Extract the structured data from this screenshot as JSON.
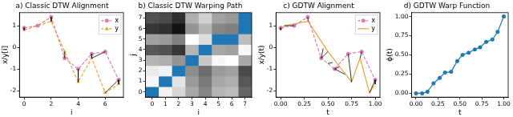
{
  "chart_data": [
    {
      "type": "line",
      "title": "a) Classic DTW Alignment",
      "x_label": "i",
      "y_label": "x/y[i]",
      "x": [
        0,
        1,
        2,
        3,
        4,
        5,
        6,
        7
      ],
      "series": [
        {
          "name": "x",
          "color": "#e07bb5",
          "marker": "circle",
          "line_style": "dashed",
          "values": [
            0.9,
            1.0,
            1.4,
            -0.5,
            -1.0,
            -0.3,
            -0.2,
            -1.5
          ]
        },
        {
          "name": "y",
          "color": "#f0a22e",
          "marker": "triangle",
          "line_style": "dashed",
          "values": [
            0.8,
            1.0,
            1.2,
            -0.2,
            -1.6,
            -0.5,
            -2.1,
            -1.7
          ]
        }
      ],
      "alignment": [
        [
          0,
          0
        ],
        [
          1,
          1
        ],
        [
          2,
          2
        ],
        [
          3,
          3
        ],
        [
          4,
          4
        ],
        [
          5,
          5
        ],
        [
          6,
          5
        ],
        [
          7,
          6
        ],
        [
          7,
          7
        ]
      ],
      "xlim": [
        -0.35,
        7.35
      ],
      "xticks": [
        0,
        2,
        4,
        6
      ],
      "ylim": [
        -2.3,
        1.6
      ],
      "yticks": [
        -2,
        -1,
        0,
        1
      ],
      "grid": false,
      "legend": "upper right"
    },
    {
      "type": "heatmap",
      "title": "b) Classic DTW Warping Path",
      "x_label": "i",
      "y_label": "j",
      "x": [
        0,
        1,
        2,
        3,
        4,
        5,
        6,
        7
      ],
      "y": [
        0,
        1,
        2,
        3,
        4,
        5,
        6,
        7
      ],
      "cells": [
        [
          0.1,
          0.2,
          0.6,
          1.3,
          1.8,
          1.1,
          1.0,
          2.3
        ],
        [
          0.1,
          0.0,
          0.4,
          1.5,
          2.0,
          1.3,
          1.2,
          2.5
        ],
        [
          0.3,
          0.2,
          0.2,
          1.7,
          2.2,
          1.5,
          1.4,
          2.7
        ],
        [
          1.1,
          1.2,
          1.6,
          0.3,
          0.8,
          0.1,
          0.0,
          1.3
        ],
        [
          2.5,
          2.6,
          3.0,
          1.1,
          0.6,
          1.3,
          1.4,
          0.1
        ],
        [
          1.4,
          1.5,
          1.9,
          0.0,
          0.5,
          0.2,
          0.3,
          1.0
        ],
        [
          3.0,
          3.1,
          3.5,
          1.6,
          1.1,
          1.8,
          1.9,
          0.6
        ],
        [
          2.6,
          2.7,
          3.1,
          1.2,
          0.7,
          1.4,
          1.5,
          0.2
        ]
      ],
      "path": {
        "color": "#1f77b4",
        "points": [
          [
            0,
            0
          ],
          [
            1,
            1
          ],
          [
            2,
            2
          ],
          [
            3,
            3
          ],
          [
            4,
            4
          ],
          [
            5,
            5
          ],
          [
            6,
            5
          ],
          [
            7,
            6
          ],
          [
            7,
            7
          ]
        ]
      },
      "xlim": [
        -0.5,
        7.5
      ],
      "xticks": [
        0,
        1,
        2,
        3,
        4,
        5,
        6,
        7
      ],
      "ylim": [
        -0.5,
        7.5
      ],
      "yticks": [
        0,
        1,
        2,
        3,
        4,
        5,
        6,
        7
      ],
      "grid": false
    },
    {
      "type": "line",
      "title": "c) GDTW Alignment",
      "x_label": "t",
      "y_label": "x/y(t)",
      "series": [
        {
          "name": "x",
          "color": "#e07bb5",
          "marker": "circle",
          "line_style": "dashed",
          "x": [
            0,
            0.143,
            0.286,
            0.429,
            0.571,
            0.714,
            0.857,
            1.0
          ],
          "values": [
            0.9,
            1.0,
            1.4,
            -0.5,
            -1.0,
            -0.3,
            -0.2,
            -1.5
          ]
        },
        {
          "name": "y",
          "color": "#f0a22e",
          "marker": "none",
          "line_style": "solid",
          "x": [
            0,
            0.04,
            0.29,
            0.5,
            0.75,
            0.84,
            0.94,
            1.0
          ],
          "values": [
            0.8,
            1.0,
            1.2,
            -0.2,
            -1.6,
            -0.5,
            -2.1,
            -1.7
          ]
        }
      ],
      "alignment_segments": [
        [
          0,
          0.9,
          0,
          0.8
        ],
        [
          0.143,
          1.0,
          0.04,
          1.0
        ],
        [
          0.286,
          1.4,
          0.29,
          1.2
        ],
        [
          0.429,
          -0.5,
          0.45,
          -0.05
        ],
        [
          0.429,
          -0.5,
          0.5,
          -0.2
        ],
        [
          0.5,
          -0.75,
          0.55,
          -0.7
        ],
        [
          0.571,
          -1.0,
          0.62,
          -0.9
        ],
        [
          0.571,
          -1.0,
          0.68,
          -1.25
        ],
        [
          0.714,
          -0.3,
          0.75,
          -1.6
        ],
        [
          0.857,
          -0.2,
          0.84,
          -0.5
        ],
        [
          1.0,
          -1.5,
          0.94,
          -2.1
        ],
        [
          1.0,
          -1.5,
          1.0,
          -1.7
        ]
      ],
      "xlim": [
        -0.05,
        1.05
      ],
      "xticks": [
        {
          "value": 0,
          "label": "0.00"
        },
        {
          "value": 0.25,
          "label": "0.25"
        },
        {
          "value": 0.5,
          "label": "0.50"
        },
        {
          "value": 0.75,
          "label": "0.75"
        },
        {
          "value": 1,
          "label": "1.00"
        }
      ],
      "ylim": [
        -2.3,
        1.6
      ],
      "yticks": [
        -2,
        -1,
        0,
        1
      ],
      "grid": false,
      "legend": "upper right"
    },
    {
      "type": "line",
      "title": "d) GDTW Warp Function",
      "x_label": "t",
      "y_label": "ϕ(t)",
      "x": [
        0,
        0.07,
        0.13,
        0.2,
        0.27,
        0.33,
        0.4,
        0.47,
        0.53,
        0.6,
        0.67,
        0.73,
        0.8,
        0.87,
        0.93,
        1.0
      ],
      "series": [
        {
          "color": "#1f77b4",
          "marker": "circle",
          "line_style": "solid",
          "values": [
            0,
            0,
            0.02,
            0.13,
            0.2,
            0.27,
            0.28,
            0.42,
            0.5,
            0.53,
            0.57,
            0.6,
            0.67,
            0.7,
            0.8,
            1.0
          ]
        }
      ],
      "xlim": [
        -0.05,
        1.05
      ],
      "xticks": [
        {
          "value": 0,
          "label": "0.00"
        },
        {
          "value": 0.25,
          "label": "0.25"
        },
        {
          "value": 0.5,
          "label": "0.50"
        },
        {
          "value": 0.75,
          "label": "0.75"
        },
        {
          "value": 1,
          "label": "1.00"
        }
      ],
      "ylim": [
        -0.05,
        1.05
      ],
      "yticks": [
        {
          "value": 0,
          "label": "0.00"
        },
        {
          "value": 0.25,
          "label": "0.25"
        },
        {
          "value": 0.5,
          "label": "0.50"
        },
        {
          "value": 0.75,
          "label": "0.75"
        },
        {
          "value": 1,
          "label": "1.00"
        }
      ],
      "grid": false
    }
  ]
}
